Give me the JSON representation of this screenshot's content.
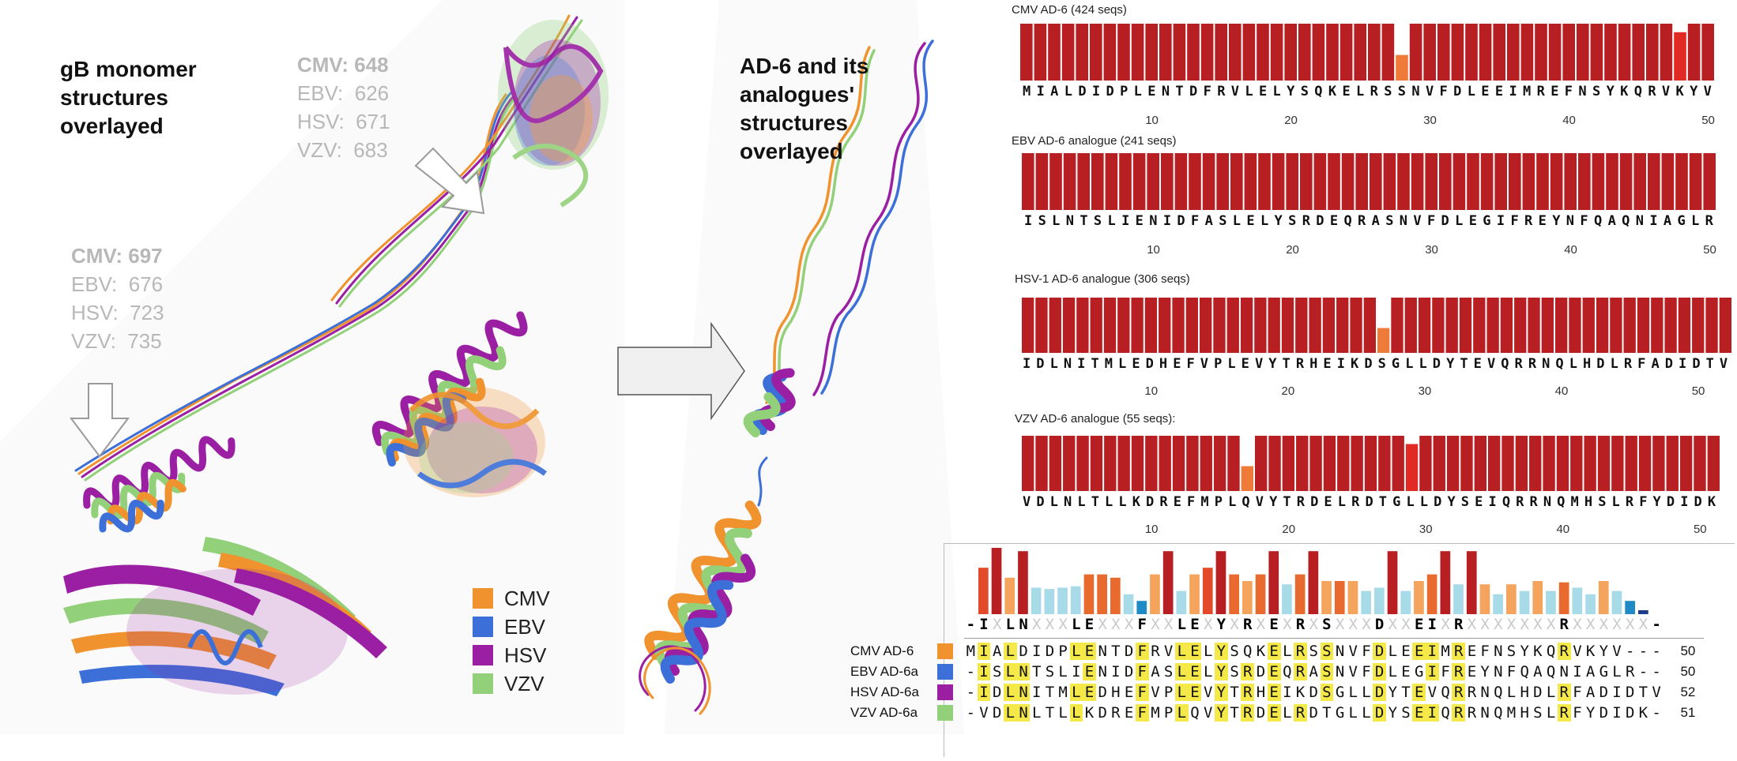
{
  "left_panel": {
    "title_lines": [
      "gB monomer",
      "structures",
      "overlayed"
    ],
    "top_positions": [
      {
        "virus": "CMV:",
        "num": "648",
        "bold": true
      },
      {
        "virus": "EBV:",
        "num": "626",
        "bold": false
      },
      {
        "virus": "HSV:",
        "num": "671",
        "bold": false
      },
      {
        "virus": "VZV:",
        "num": "683",
        "bold": false
      }
    ],
    "bottom_positions": [
      {
        "virus": "CMV:",
        "num": "697",
        "bold": true
      },
      {
        "virus": "EBV:",
        "num": "676",
        "bold": false
      },
      {
        "virus": "HSV:",
        "num": "723",
        "bold": false
      },
      {
        "virus": "VZV:",
        "num": "735",
        "bold": false
      }
    ]
  },
  "middle_panel": {
    "title_lines": [
      "AD-6 and its",
      "analogues'",
      "structures",
      "overlayed"
    ]
  },
  "legend": [
    {
      "label": "CMV",
      "color": "#f0922e"
    },
    {
      "label": "EBV",
      "color": "#3c6fd8"
    },
    {
      "label": "HSV",
      "color": "#9a1fa3"
    },
    {
      "label": "VZV",
      "color": "#93d07a"
    }
  ],
  "logos": [
    {
      "title": "CMV AD-6 (424 seqs)",
      "sequence": "MIALDIDPLENTDFRVLELYSQKELRSSNVFDLEEIMREFNSYKQRVKYV",
      "ticks": [
        "10",
        "20",
        "30",
        "40",
        "50"
      ],
      "orange_positions": [
        28
      ],
      "redorange_positions": [
        48
      ]
    },
    {
      "title": "EBV AD-6 analogue (241 seqs)",
      "sequence": "ISLNTSLIENIDFASLELYSRDEQRASNVFDLEGIFREYNFQAQNIAGLR",
      "ticks": [
        "10",
        "20",
        "30",
        "40",
        "50"
      ],
      "orange_positions": [],
      "redorange_positions": []
    },
    {
      "title": "HSV-1 AD-6 analogue (306 seqs)",
      "sequence": "IDLNITMLEDHEFVPLEVYTRHEIKDSGLLDYTEVQRRNQLHDLRFADIDTV",
      "ticks": [
        "10",
        "20",
        "30",
        "40",
        "50"
      ],
      "orange_positions": [
        27
      ],
      "redorange_positions": []
    },
    {
      "title": "VZV AD-6 analogue (55 seqs):",
      "sequence": "VDLNLTLLKDREFMPLQVYTRDELRDTGLLDYSEIQRRNQMHSLRFYDIDK",
      "ticks": [
        "10",
        "20",
        "30",
        "40",
        "50"
      ],
      "orange_positions": [
        17
      ],
      "redorange_positions": [
        29
      ]
    }
  ],
  "alignment": {
    "consensus": "-I.LN...LE...F..LE.Y.R.E.R.S...D..EI.R.......R......-",
    "conservation_colors": [
      "#e34a2a",
      "#b81f22",
      "#f4a45d",
      "#b81f22",
      "#a8dbe8",
      "#a8dbe8",
      "#a8dbe8",
      "#a8dbe8",
      "#e96a2e",
      "#e96a2e",
      "#e96a2e",
      "#a8dbe8",
      "#1e8ac6",
      "#f4a45d",
      "#b81f22",
      "#a8dbe8",
      "#f4a45d",
      "#e34a2a",
      "#b81f22",
      "#e96a2e",
      "#f4a45d",
      "#e96a2e",
      "#b81f22",
      "#a8dbe8",
      "#e96a2e",
      "#b81f22",
      "#f4a45d",
      "#e96a2e",
      "#f4a45d",
      "#a8dbe8",
      "#a8dbe8",
      "#b81f22",
      "#a8dbe8",
      "#f4a45d",
      "#e96a2e",
      "#b81f22",
      "#a8dbe8",
      "#b81f22",
      "#f4a45d",
      "#a8dbe8",
      "#f4a45d",
      "#a8dbe8",
      "#f4a45d",
      "#a8dbe8",
      "#e96a2e",
      "#a8dbe8",
      "#a8dbe8",
      "#f4a45d",
      "#a8dbe8",
      "#1e8ac6",
      "#1e3d8c"
    ],
    "conservation_values": [
      0.7,
      1.0,
      0.55,
      0.95,
      0.4,
      0.38,
      0.4,
      0.42,
      0.6,
      0.6,
      0.55,
      0.3,
      0.2,
      0.6,
      0.95,
      0.35,
      0.6,
      0.7,
      0.95,
      0.6,
      0.5,
      0.6,
      0.95,
      0.45,
      0.6,
      0.95,
      0.5,
      0.5,
      0.5,
      0.35,
      0.4,
      0.95,
      0.35,
      0.5,
      0.6,
      0.95,
      0.45,
      0.95,
      0.45,
      0.3,
      0.45,
      0.35,
      0.5,
      0.35,
      0.48,
      0.4,
      0.3,
      0.5,
      0.35,
      0.2,
      0.06
    ],
    "rows": [
      {
        "label": "CMV AD-6",
        "color": "#f0922e",
        "seq": "MIALDIDPLENTDFRVLELYSQKELRSSNVFDLEEIMREFNSYKQRVKYV---",
        "len": "50"
      },
      {
        "label": "EBV AD-6a",
        "color": "#3c6fd8",
        "seq": "-ISLNTSLIENIDFASLELYSRDEQRASNVFDLEGIFREYNFQAQNIAGLR--",
        "len": "50"
      },
      {
        "label": "HSV AD-6a",
        "color": "#9a1fa3",
        "seq": "-IDLNITMLEDHEFVPLEVYTRHEIKDSGLLDYTEVQRRNQLHDLRFADIDTV",
        "len": "52"
      },
      {
        "label": "VZV AD-6a",
        "color": "#93d07a",
        "seq": "-VDLNLTLLKDREFMPLQVYTRDELRDTGLLDYSEIQRRNQMHSLRFYDIDK-",
        "len": "51"
      }
    ]
  }
}
